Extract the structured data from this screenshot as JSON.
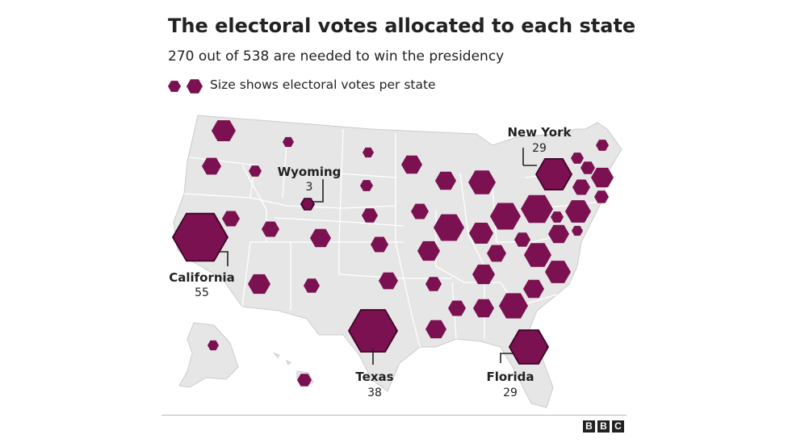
{
  "title": "The electoral votes allocated to each state",
  "subtitle": "270 out of 538 are needed to win the presidency",
  "legend": {
    "text": "Size shows electoral votes per state",
    "icon": "hexagon-size-legend"
  },
  "colors": {
    "hex": "#7b1151",
    "hex_stroke": "#3d0527",
    "land": "#e6e6e6",
    "border": "#ffffff"
  },
  "labels": [
    {
      "name": "New York",
      "votes": "29"
    },
    {
      "name": "Wyoming",
      "votes": "3"
    },
    {
      "name": "California",
      "votes": "55"
    },
    {
      "name": "Texas",
      "votes": "38"
    },
    {
      "name": "Florida",
      "votes": "29"
    }
  ],
  "source_logo": [
    "B",
    "B",
    "C"
  ]
}
